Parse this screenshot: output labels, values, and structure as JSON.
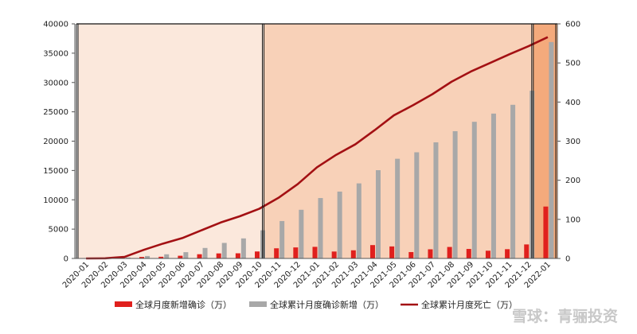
{
  "chart_data": {
    "type": "bar",
    "categories": [
      "2020-01",
      "2020-02",
      "2020-03",
      "2020-04",
      "2020-05",
      "2020-06",
      "2020-07",
      "2020-08",
      "2020-09",
      "2020-10",
      "2020-11",
      "2020-12",
      "2021-01",
      "2021-02",
      "2021-03",
      "2021-04",
      "2021-05",
      "2021-06",
      "2021-07",
      "2021-08",
      "2021-09",
      "2021-10",
      "2021-11",
      "2021-12",
      "2022-01"
    ],
    "y_left_ticks": [
      "0",
      "5000",
      "10000",
      "15000",
      "20000",
      "25000",
      "30000",
      "35000",
      "40000"
    ],
    "y_right_ticks": [
      "0",
      "100",
      "200",
      "300",
      "400",
      "500",
      "600"
    ],
    "ylim_left": [
      0,
      40000
    ],
    "ylim_right": [
      0,
      600
    ],
    "series": [
      {
        "name": "全球月度新增确诊（万）",
        "axis": "left",
        "kind": "bar",
        "color": "#e0201d",
        "values": [
          10,
          70,
          80,
          260,
          290,
          460,
          720,
          860,
          880,
          1190,
          1730,
          1880,
          1980,
          1180,
          1390,
          2280,
          2050,
          1090,
          1560,
          1960,
          1620,
          1320,
          1580,
          2390,
          8850
        ]
      },
      {
        "name": "全球累计月度确诊新增（万）",
        "axis": "left",
        "kind": "bar",
        "color": "#a8a8a8",
        "values": [
          10,
          80,
          160,
          420,
          710,
          1070,
          1790,
          2650,
          3420,
          4800,
          6380,
          8300,
          10300,
          11400,
          12800,
          15050,
          17000,
          18100,
          19800,
          21700,
          23300,
          24700,
          26200,
          28600,
          36900
        ]
      },
      {
        "name": "全球累计月度死亡（万）",
        "axis": "right",
        "kind": "line",
        "color": "#a31013",
        "values": [
          0,
          0.3,
          4,
          22,
          38,
          52,
          72,
          92,
          108,
          127,
          155,
          190,
          233,
          265,
          292,
          328,
          366,
          392,
          420,
          452,
          478,
          500,
          522,
          543,
          566
        ]
      }
    ],
    "regions": [
      {
        "from": "2020-01",
        "to": "2020-10",
        "color": "#fbe8dc"
      },
      {
        "from": "2020-10",
        "to": "2021-12",
        "color": "#f8d1b8"
      },
      {
        "from": "2021-12",
        "to": "2022-01",
        "color": "#f4aa7c"
      }
    ],
    "legend_position": "bottom",
    "grid": false,
    "title": "",
    "xlabel": "",
    "ylabel": ""
  },
  "watermark": "雪球：青骊投资"
}
